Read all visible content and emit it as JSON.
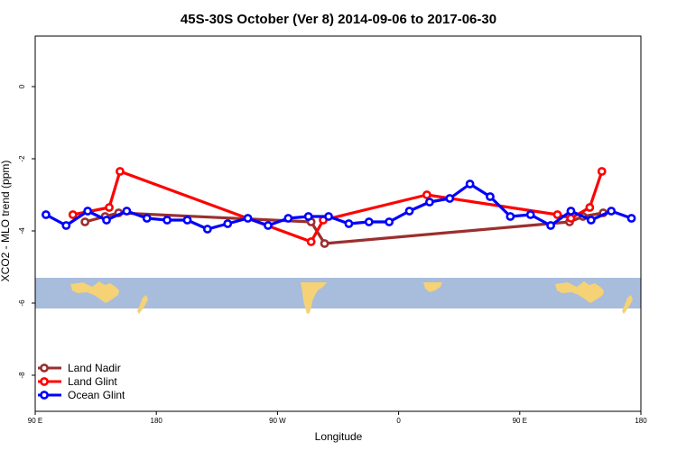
{
  "chart_data": {
    "type": "line",
    "title": "45S-30S October (Ver 8)   2014-09-06 to 2017-06-30",
    "xlabel": "Longitude",
    "ylabel": "XCO2 - MLO trend (ppm)",
    "xlim": [
      0,
      450
    ],
    "ylim": [
      -9,
      1.4
    ],
    "x_ticks": [
      {
        "value": 0,
        "label": "90 E"
      },
      {
        "value": 90,
        "label": "180"
      },
      {
        "value": 180,
        "label": "90 W"
      },
      {
        "value": 270,
        "label": "0"
      },
      {
        "value": 360,
        "label": "90 E"
      },
      {
        "value": 450,
        "label": "180"
      }
    ],
    "y_ticks": [
      0,
      -2,
      -4,
      -6,
      -8
    ],
    "grid": false,
    "legend_position": "bottom-left",
    "map_strip": {
      "y_range": [
        -5.3,
        -6.15
      ],
      "ocean_color": "#a8bcdc",
      "land_color": "#f5d275"
    },
    "series": [
      {
        "name": "Land Nadir",
        "color": "#9b2f2f",
        "points": [
          [
            37,
            -3.75
          ],
          [
            52,
            -3.6
          ],
          [
            62,
            -3.5
          ],
          [
            205,
            -3.75
          ],
          [
            215,
            -4.35
          ],
          [
            397,
            -3.75
          ],
          [
            407,
            -3.6
          ],
          [
            422,
            -3.5
          ]
        ]
      },
      {
        "name": "Land Glint",
        "color": "#ff0000",
        "points": [
          [
            28,
            -3.55
          ],
          [
            55,
            -3.35
          ],
          [
            63,
            -2.35
          ],
          [
            205,
            -4.3
          ],
          [
            214,
            -3.7
          ],
          [
            291,
            -3.0
          ],
          [
            388,
            -3.55
          ],
          [
            398,
            -3.65
          ],
          [
            412,
            -3.35
          ],
          [
            421,
            -2.35
          ]
        ]
      },
      {
        "name": "Ocean Glint",
        "color": "#0000ff",
        "points": [
          [
            8,
            -3.55
          ],
          [
            23,
            -3.85
          ],
          [
            39,
            -3.45
          ],
          [
            53,
            -3.7
          ],
          [
            68,
            -3.45
          ],
          [
            83,
            -3.65
          ],
          [
            98,
            -3.7
          ],
          [
            113,
            -3.7
          ],
          [
            128,
            -3.95
          ],
          [
            143,
            -3.8
          ],
          [
            158,
            -3.65
          ],
          [
            173,
            -3.85
          ],
          [
            188,
            -3.65
          ],
          [
            203,
            -3.6
          ],
          [
            218,
            -3.6
          ],
          [
            233,
            -3.8
          ],
          [
            248,
            -3.75
          ],
          [
            263,
            -3.75
          ],
          [
            278,
            -3.45
          ],
          [
            293,
            -3.2
          ],
          [
            308,
            -3.1
          ],
          [
            323,
            -2.7
          ],
          [
            338,
            -3.05
          ],
          [
            353,
            -3.6
          ],
          [
            368,
            -3.55
          ],
          [
            383,
            -3.85
          ],
          [
            398,
            -3.45
          ],
          [
            413,
            -3.7
          ],
          [
            428,
            -3.45
          ],
          [
            443,
            -3.65
          ]
        ]
      }
    ]
  }
}
